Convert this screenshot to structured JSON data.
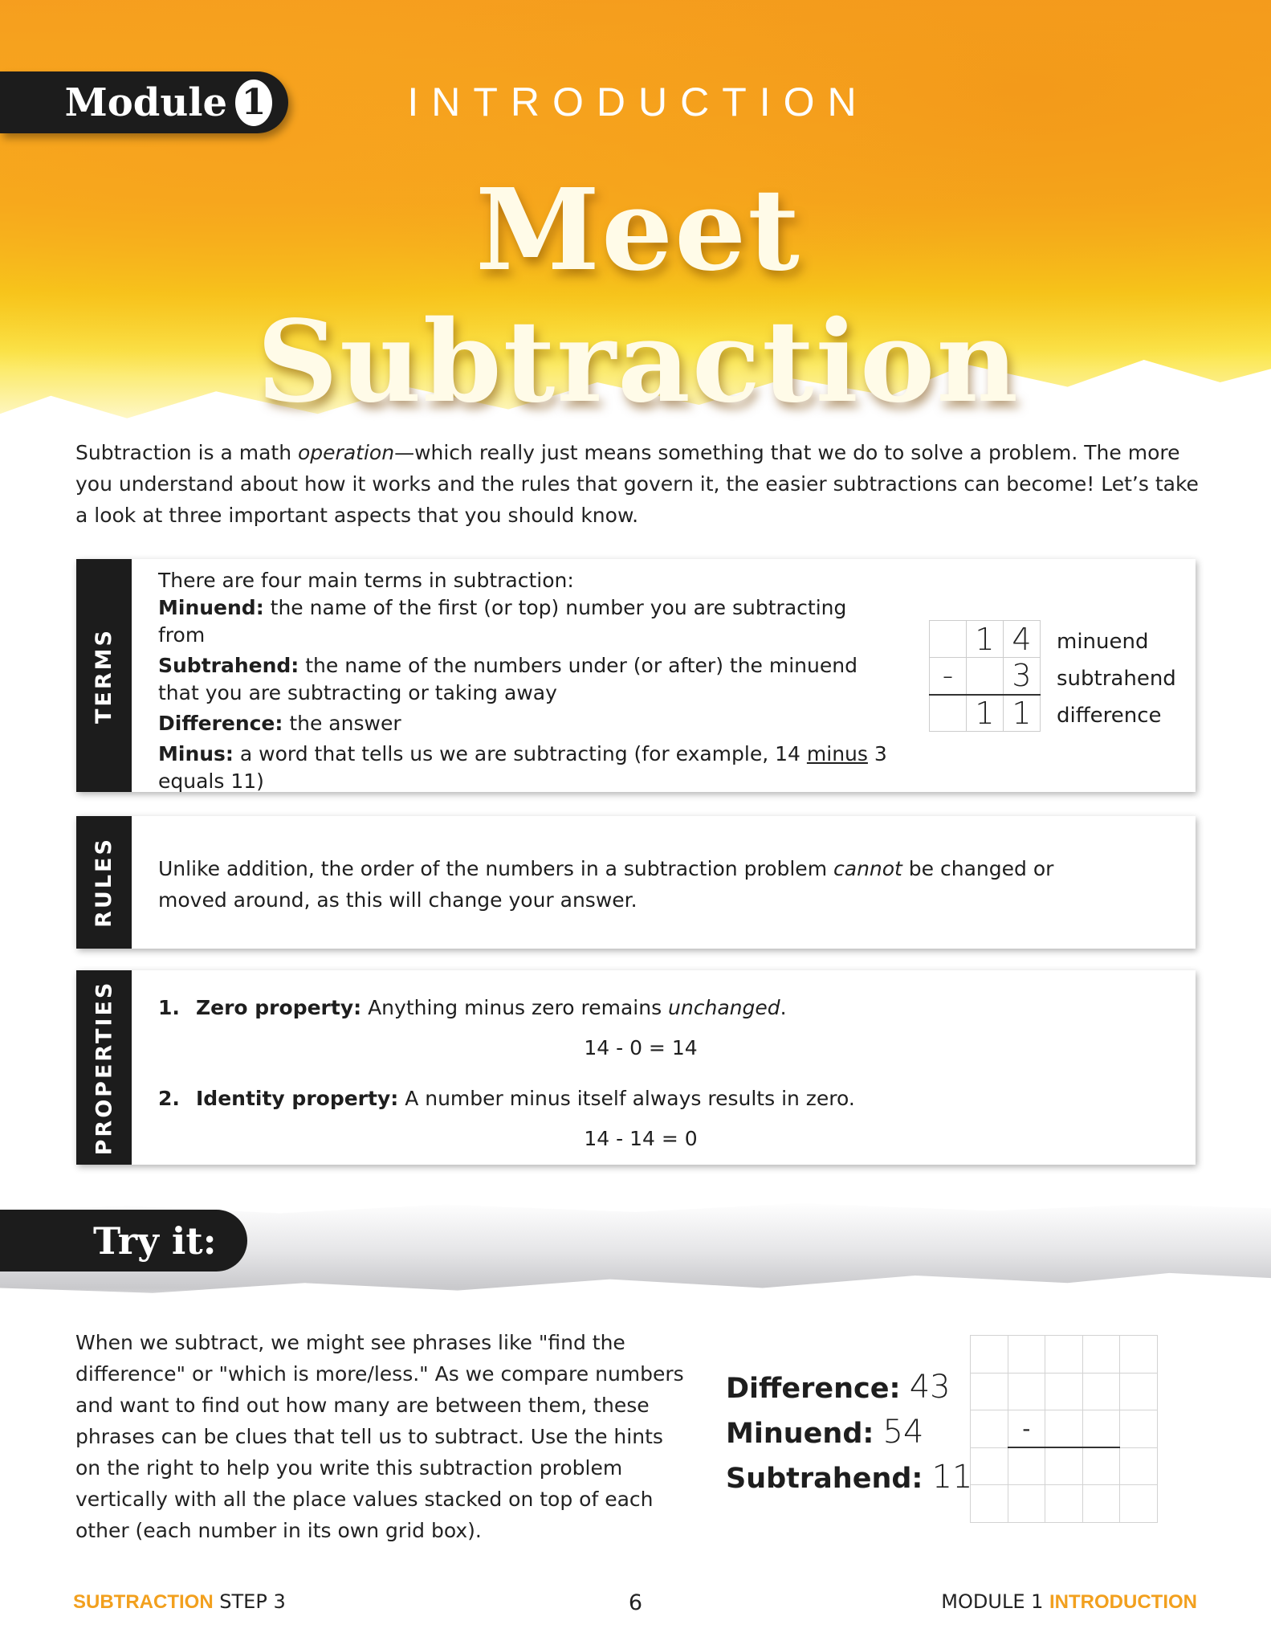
{
  "header": {
    "module_word": "Module",
    "module_number": "1",
    "section": "INTRODUCTION",
    "title": "Meet Subtraction"
  },
  "intro": {
    "pre": "Subtraction is a math ",
    "em": "operation",
    "post": "—which really just means something that we do to solve a problem. The more you understand about how it works and the rules that govern it, the easier subtractions can become! Let’s take a look at three important aspects that you should know."
  },
  "terms": {
    "label": "TERMS",
    "lead": "There are four main terms in subtraction:",
    "items": [
      {
        "term": "Minuend:",
        "def": " the name of the first (or top) number you are subtracting from"
      },
      {
        "term": "Subtrahend:",
        "def": " the name of the numbers under (or after) the minuend  that you are subtracting or taking away"
      },
      {
        "term": "Difference:",
        "def": " the answer"
      },
      {
        "term": "Minus:",
        "def_pre": " a word that tells us we are subtracting (for example, 14 ",
        "def_u": "minus",
        "def_post": " 3 equals 11)"
      }
    ],
    "example": {
      "rows": [
        [
          "",
          "1",
          "4"
        ],
        [
          "-",
          "",
          "3"
        ],
        [
          "",
          "1",
          "1"
        ]
      ],
      "labels": [
        "minuend",
        "subtrahend",
        "difference"
      ]
    }
  },
  "rules": {
    "label": "RULES",
    "pre": "Unlike addition, the order of the numbers in a subtraction problem ",
    "em": "cannot",
    "post": " be changed or moved around, as this will change your answer."
  },
  "properties": {
    "label": "PROPERTIES",
    "items": [
      {
        "num": "1.",
        "name": "Zero property:",
        "desc": " Anything minus zero remains ",
        "em": "unchanged",
        "end": ".",
        "example": "14 - 0 = 14"
      },
      {
        "num": "2.",
        "name": "Identity property:",
        "desc": " A number minus itself always results in zero.",
        "em": "",
        "end": "",
        "example": "14 - 14 = 0"
      }
    ]
  },
  "try_it": {
    "label": "Try it:",
    "text": "When we subtract, we might see phrases like \"find the difference\" or \"which is more/less.\" As we compare numbers and want to find out how many are between them, these phrases can be clues that tell us to subtract. Use the hints on the right to help you write this subtraction problem vertically with all the place values stacked on top of each other (each number in its own grid box).",
    "hints": [
      {
        "label": "Difference:",
        "value": "43"
      },
      {
        "label": "Minuend:",
        "value": "54"
      },
      {
        "label": "Subtrahend:",
        "value": "11"
      }
    ],
    "grid_sign": "-"
  },
  "footer": {
    "left_accent": "SUBTRACTION",
    "left": " STEP 3",
    "page": "6",
    "right": "MODULE 1 ",
    "right_accent": "INTRODUCTION"
  },
  "colors": {
    "accent": "#f2a01e",
    "dark": "#1c1c1c"
  }
}
